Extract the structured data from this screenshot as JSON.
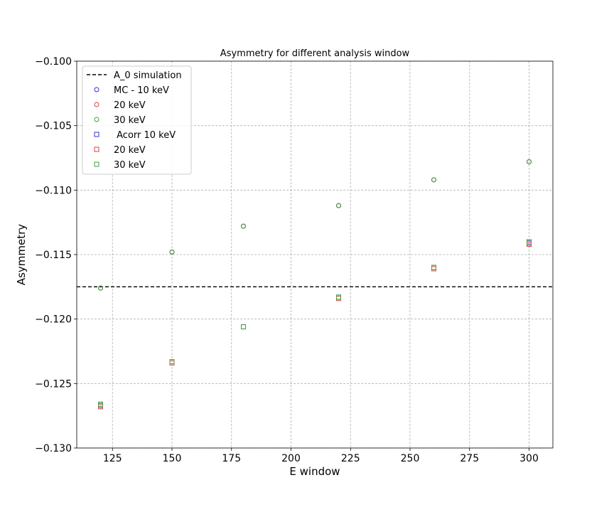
{
  "chart_data": {
    "type": "scatter",
    "title": "Asymmetry for different analysis window",
    "xlabel": "E window",
    "ylabel": "Asymmetry",
    "xlim": [
      110,
      310
    ],
    "ylim": [
      -0.13,
      -0.1
    ],
    "xticks": [
      125,
      150,
      175,
      200,
      225,
      250,
      275,
      300
    ],
    "xtick_labels": [
      "125",
      "150",
      "175",
      "200",
      "225",
      "250",
      "275",
      "300"
    ],
    "yticks": [
      -0.13,
      -0.125,
      -0.12,
      -0.115,
      -0.11,
      -0.105,
      -0.1
    ],
    "ytick_labels": [
      "−0.130",
      "−0.125",
      "−0.120",
      "−0.115",
      "−0.110",
      "−0.105",
      "−0.100"
    ],
    "grid": true,
    "legend_position": "top-left",
    "reference_line": {
      "name": "A_0 simulation",
      "y": -0.1175,
      "style": "dashed",
      "color": "#000000"
    },
    "series": [
      {
        "name": "MC - 10 keV",
        "marker": "circle",
        "color": "#3333cc",
        "x": [
          120,
          150,
          180,
          220,
          260,
          300
        ],
        "y": [
          -0.1176,
          -0.1148,
          -0.1128,
          -0.1112,
          -0.1092,
          -0.1078
        ]
      },
      {
        "name": "20 keV",
        "marker": "circle",
        "color": "#e04040",
        "x": [
          120,
          150,
          180,
          220,
          260,
          300
        ],
        "y": [
          -0.1176,
          -0.1148,
          -0.1128,
          -0.1112,
          -0.1092,
          -0.1078
        ]
      },
      {
        "name": "30 keV",
        "marker": "circle",
        "color": "#40a040",
        "x": [
          120,
          150,
          180,
          220,
          260,
          300
        ],
        "y": [
          -0.1176,
          -0.1148,
          -0.1128,
          -0.1112,
          -0.1092,
          -0.1078
        ]
      },
      {
        "name": " Acorr 10 keV",
        "marker": "square",
        "color": "#3333cc",
        "x": [
          120,
          150,
          180,
          220,
          260,
          300
        ],
        "y": [
          -0.1267,
          -0.1233,
          -0.1206,
          -0.1183,
          -0.116,
          -0.1141
        ]
      },
      {
        "name": "20 keV",
        "marker": "square",
        "color": "#e04040",
        "x": [
          120,
          150,
          180,
          220,
          260,
          300
        ],
        "y": [
          -0.1268,
          -0.1234,
          -0.1206,
          -0.1184,
          -0.1161,
          -0.1142
        ]
      },
      {
        "name": "30 keV",
        "marker": "square",
        "color": "#40a040",
        "x": [
          120,
          150,
          180,
          220,
          260,
          300
        ],
        "y": [
          -0.1266,
          -0.1233,
          -0.1206,
          -0.1183,
          -0.116,
          -0.114
        ]
      }
    ]
  }
}
